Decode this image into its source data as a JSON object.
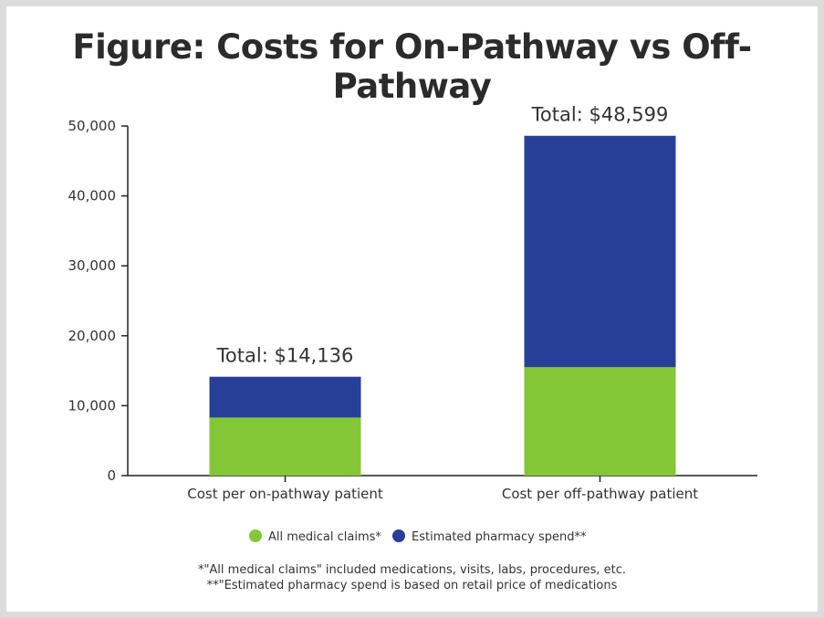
{
  "title": "Figure: Costs for On-Pathway vs Off-Pathway",
  "chart_data": {
    "type": "bar",
    "stacked": true,
    "categories": [
      "Cost per on-pathway patient",
      "Cost per off-pathway patient"
    ],
    "series": [
      {
        "name": "All medical claims*",
        "color": "#82c736",
        "values": [
          8300,
          15500
        ]
      },
      {
        "name": "Estimated pharmacy spend**",
        "color": "#283f98",
        "values": [
          5836,
          33099
        ]
      }
    ],
    "totals": [
      "Total: $14,136",
      "Total: $48,599"
    ],
    "ylim": [
      0,
      50000
    ],
    "yticks": [
      0,
      10000,
      20000,
      30000,
      40000,
      50000
    ],
    "ytick_labels": [
      "0",
      "10,000",
      "20,000",
      "30,000",
      "40,000",
      "50,000"
    ],
    "xlabel": "",
    "ylabel": "",
    "legend_position": "bottom-center"
  },
  "footnotes": [
    "*\"All medical claims\" included medications, visits, labs, procedures, etc.",
    "**\"Estimated pharmacy spend is based on retail price of medications"
  ]
}
